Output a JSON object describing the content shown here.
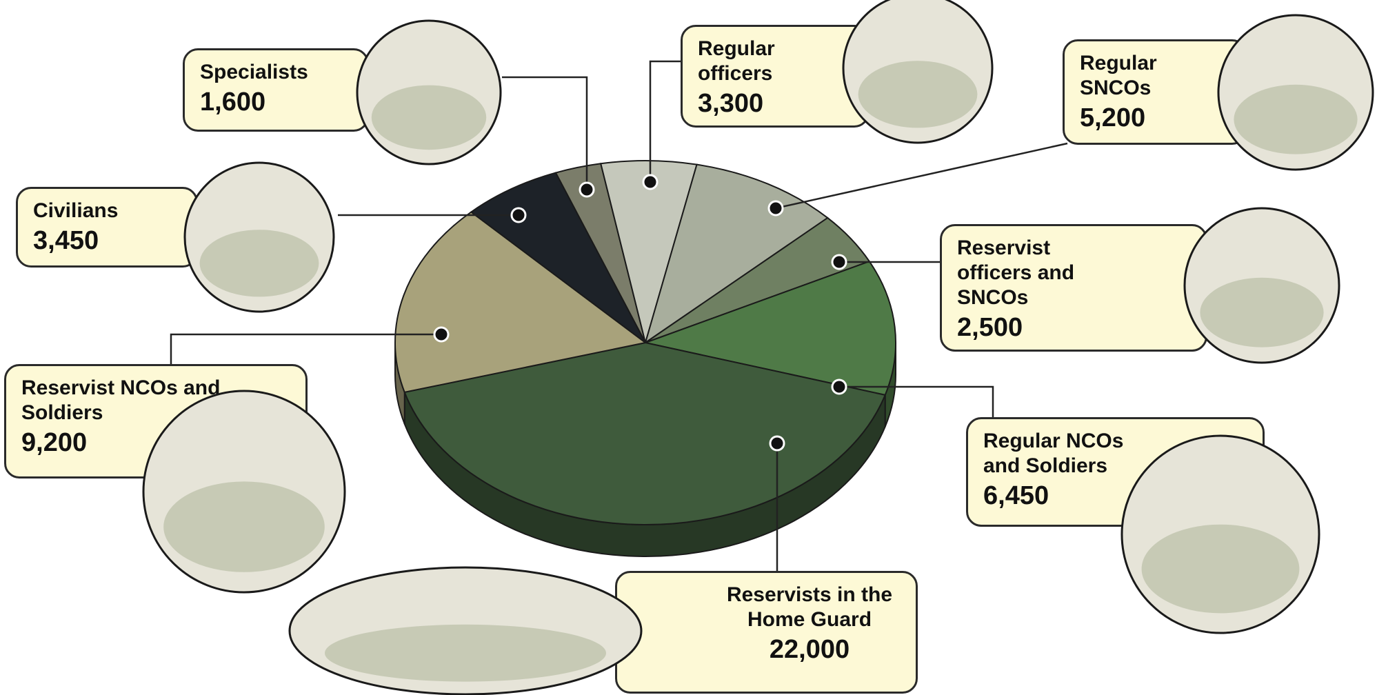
{
  "chart_data": {
    "type": "pie",
    "categories": [
      "Specialists",
      "Regular officers",
      "Regular SNCOs",
      "Reservist officers and SNCOs",
      "Regular NCOs and Soldiers",
      "Reservists in the Home Guard",
      "Reservist NCOs and Soldiers",
      "Civilians"
    ],
    "values": [
      1600,
      3300,
      5200,
      2500,
      6450,
      22000,
      9200,
      3450
    ],
    "value_labels": [
      "1,600",
      "3,300",
      "5,200",
      "2,500",
      "6,450",
      "22,000",
      "9,200",
      "3,450"
    ],
    "colors": [
      "#7b7d6a",
      "#c5c8bb",
      "#a8ae9d",
      "#6f8062",
      "#4f7a47",
      "#3f5b3c",
      "#a8a27b",
      "#1d2228"
    ]
  }
}
